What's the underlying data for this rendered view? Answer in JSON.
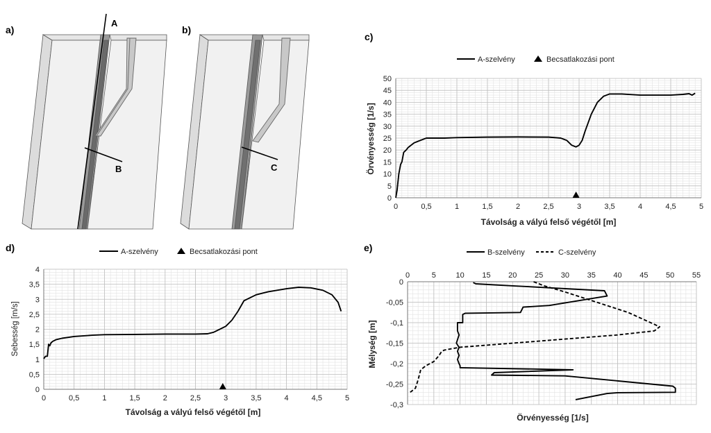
{
  "panel_labels": [
    "a)",
    "b)",
    "c)",
    "d)",
    "e)"
  ],
  "diagram_labels": {
    "a_top": "A",
    "a_bottom": "B",
    "b_bottom": "C"
  },
  "colors": {
    "line": "#000000",
    "grid_major": "#bdbdbd",
    "grid_minor": "#e2e2e2",
    "block_face": "#f1f1f1",
    "block_side": "#dcdcdc",
    "channel": "#9a9a9a"
  },
  "chart_data": [
    {
      "id": "c",
      "type": "line",
      "xlabel": "Távolság a vályú felső végétől [m]",
      "ylabel": "Örvényesség [1/s]",
      "xlim": [
        0,
        5
      ],
      "ylim": [
        0,
        50
      ],
      "xticks": [
        0,
        0.5,
        1,
        1.5,
        2,
        2.5,
        3,
        3.5,
        4,
        4.5,
        5
      ],
      "yticks": [
        0,
        5,
        10,
        15,
        20,
        25,
        30,
        35,
        40,
        45,
        50
      ],
      "xtick_labels": [
        "0",
        "0,5",
        "1",
        "1,5",
        "2",
        "2,5",
        "3",
        "3,5",
        "4",
        "4,5",
        "5"
      ],
      "ytick_labels": [
        "0",
        "5",
        "10",
        "15",
        "20",
        "25",
        "30",
        "35",
        "40",
        "45",
        "50"
      ],
      "grid": true,
      "legend": {
        "position": "top",
        "entries": [
          "A-szelvény",
          "Becsatlakozási pont"
        ]
      },
      "series": [
        {
          "name": "A-szelvény",
          "x": [
            0,
            0.02,
            0.05,
            0.08,
            0.1,
            0.13,
            0.17,
            0.2,
            0.3,
            0.4,
            0.5,
            0.6,
            0.8,
            1,
            1.5,
            2,
            2.5,
            2.7,
            2.8,
            2.88,
            2.95,
            3,
            3.05,
            3.1,
            3.2,
            3.3,
            3.4,
            3.5,
            3.7,
            4,
            4.2,
            4.5,
            4.7,
            4.8,
            4.85,
            4.9
          ],
          "y": [
            0,
            3,
            10,
            14,
            15,
            19,
            20,
            21,
            23,
            24,
            25,
            25,
            25,
            25.2,
            25.4,
            25.5,
            25.4,
            25,
            24,
            22,
            21.3,
            22,
            24,
            28,
            35,
            40,
            42.5,
            43.5,
            43.5,
            43,
            43,
            43,
            43.3,
            43.6,
            43,
            43.8
          ]
        },
        {
          "name": "Becsatlakozási pont",
          "marker": "triangle",
          "x": [
            2.95
          ],
          "y": [
            0
          ]
        }
      ]
    },
    {
      "id": "d",
      "type": "line",
      "xlabel": "Távolság a vályú felső végétől [m]",
      "ylabel": "Sebesség [m/s]",
      "xlim": [
        0,
        5
      ],
      "ylim": [
        0,
        4
      ],
      "xticks": [
        0,
        0.5,
        1,
        1.5,
        2,
        2.5,
        3,
        3.5,
        4,
        4.5,
        5
      ],
      "yticks": [
        0,
        0.5,
        1,
        1.5,
        2,
        2.5,
        3,
        3.5,
        4
      ],
      "xtick_labels": [
        "0",
        "0,5",
        "1",
        "1,5",
        "2",
        "2,5",
        "3",
        "3,5",
        "4",
        "4,5",
        "5"
      ],
      "ytick_labels": [
        "0",
        "0,5",
        "1",
        "1,5",
        "2",
        "2,5",
        "3",
        "3,5",
        "4"
      ],
      "grid": true,
      "legend": {
        "position": "top",
        "entries": [
          "A-szelvény",
          "Becsatlakozási pont"
        ]
      },
      "series": [
        {
          "name": "A-szelvény",
          "x": [
            0,
            0.03,
            0.06,
            0.08,
            0.1,
            0.12,
            0.15,
            0.2,
            0.3,
            0.5,
            0.8,
            1,
            1.5,
            2,
            2.5,
            2.7,
            2.8,
            2.9,
            3,
            3.1,
            3.2,
            3.3,
            3.5,
            3.7,
            4,
            4.2,
            4.4,
            4.6,
            4.75,
            4.85,
            4.9
          ],
          "y": [
            1.02,
            1.1,
            1.1,
            1.5,
            1.45,
            1.55,
            1.6,
            1.65,
            1.7,
            1.76,
            1.8,
            1.82,
            1.83,
            1.84,
            1.84,
            1.85,
            1.9,
            2,
            2.1,
            2.3,
            2.6,
            2.95,
            3.15,
            3.25,
            3.35,
            3.4,
            3.38,
            3.3,
            3.15,
            2.9,
            2.6
          ]
        },
        {
          "name": "Becsatlakozási pont",
          "marker": "triangle",
          "x": [
            2.95
          ],
          "y": [
            0
          ]
        }
      ]
    },
    {
      "id": "e",
      "type": "line",
      "xlabel": "Örvényesség [1/s]",
      "ylabel": "Mélység [m]",
      "xlim": [
        0,
        55
      ],
      "ylim": [
        -0.3,
        0
      ],
      "xticks": [
        0,
        5,
        10,
        15,
        20,
        25,
        30,
        35,
        40,
        45,
        50,
        55
      ],
      "yticks": [
        0,
        -0.05,
        -0.1,
        -0.15,
        -0.2,
        -0.25,
        -0.3
      ],
      "xtick_labels": [
        "0",
        "5",
        "10",
        "15",
        "20",
        "25",
        "30",
        "35",
        "40",
        "45",
        "50",
        "55"
      ],
      "ytick_labels": [
        "0",
        "-0,05",
        "-0,1",
        "-0,15",
        "-0,2",
        "-0,25",
        "-0,3"
      ],
      "x_axis_position": "top",
      "grid": true,
      "legend": {
        "position": "top",
        "entries": [
          "B-szelvény",
          "C-szelvény"
        ]
      },
      "series": [
        {
          "name": "B-szelvény",
          "style": "solid",
          "x": [
            12.5,
            13,
            20,
            37.5,
            38,
            27,
            22,
            21.5,
            11,
            10.5,
            10.5,
            9.5,
            9.5,
            9.8,
            9.3,
            9.8,
            9.5,
            9.8,
            9.5,
            9.8,
            10,
            10,
            10.2,
            31.5,
            16.5,
            16,
            30,
            50.5,
            51,
            51,
            40,
            38,
            32
          ],
          "y": [
            -0.002,
            -0.005,
            -0.01,
            -0.022,
            -0.035,
            -0.058,
            -0.062,
            -0.075,
            -0.077,
            -0.08,
            -0.1,
            -0.1,
            -0.12,
            -0.13,
            -0.15,
            -0.16,
            -0.17,
            -0.18,
            -0.19,
            -0.2,
            -0.205,
            -0.21,
            -0.21,
            -0.215,
            -0.222,
            -0.228,
            -0.23,
            -0.255,
            -0.26,
            -0.27,
            -0.271,
            -0.273,
            -0.288
          ]
        },
        {
          "name": "C-szelvény",
          "style": "dashed",
          "x": [
            24,
            26,
            30,
            36,
            42,
            48,
            47,
            40,
            30,
            20,
            10,
            7,
            6.5,
            6,
            5,
            3.5,
            2.5,
            2,
            1.5,
            0.5
          ],
          "y": [
            0,
            -0.01,
            -0.025,
            -0.05,
            -0.075,
            -0.11,
            -0.12,
            -0.13,
            -0.14,
            -0.15,
            -0.16,
            -0.167,
            -0.17,
            -0.18,
            -0.195,
            -0.205,
            -0.215,
            -0.24,
            -0.26,
            -0.27
          ]
        }
      ]
    }
  ]
}
